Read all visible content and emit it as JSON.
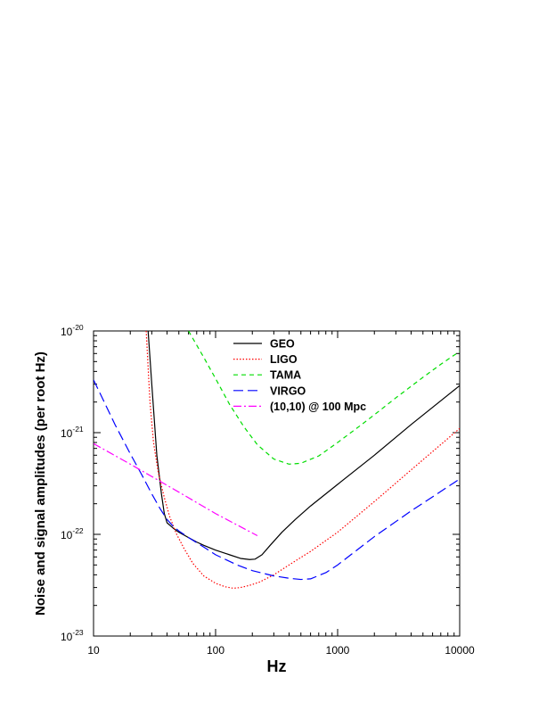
{
  "chart_data": {
    "type": "line",
    "xscale": "log",
    "yscale": "log",
    "xlim": [
      10,
      10000
    ],
    "ylim": [
      1e-23,
      1e-20
    ],
    "xlabel": "Hz",
    "ylabel": "Noise and signal amplitudes (per root Hz)",
    "x_tick_labels": [
      "10",
      "100",
      "1000",
      "10000"
    ],
    "y_tick_labels": [
      {
        "base": "10",
        "exp": "-20"
      },
      {
        "base": "10",
        "exp": "-21"
      },
      {
        "base": "10",
        "exp": "-22"
      },
      {
        "base": "10",
        "exp": "-23"
      }
    ],
    "grid": false,
    "legend_position": "top-center",
    "series": [
      {
        "name": "GEO",
        "color": "#000000",
        "dash": "solid",
        "x": [
          28,
          30,
          33,
          36,
          38,
          40,
          45,
          50,
          60,
          70,
          80,
          100,
          130,
          160,
          190,
          210,
          240,
          280,
          350,
          450,
          600,
          1000,
          2000,
          4000,
          10000
        ],
        "y": [
          1e-20,
          3e-21,
          6e-22,
          2.5e-22,
          1.6e-22,
          1.3e-22,
          1.15e-22,
          1.05e-22,
          9.3e-23,
          8.4e-23,
          7.8e-23,
          7e-23,
          6.3e-23,
          5.8e-23,
          5.65e-23,
          5.7e-23,
          6.3e-23,
          7.8e-23,
          1.05e-22,
          1.4e-22,
          1.9e-22,
          3.1e-22,
          6e-22,
          1.2e-21,
          2.9e-21
        ]
      },
      {
        "name": "LIGO",
        "color": "#ff0000",
        "dash": "dotted",
        "x": [
          27,
          29,
          31,
          34,
          38,
          42,
          48,
          55,
          65,
          80,
          100,
          120,
          140,
          160,
          190,
          230,
          300,
          400,
          600,
          1000,
          2000,
          4000,
          10000
        ],
        "y": [
          1e-20,
          2e-21,
          8e-22,
          4e-22,
          2.3e-22,
          1.5e-22,
          1e-22,
          7.3e-23,
          5.2e-23,
          3.9e-23,
          3.3e-23,
          3.05e-23,
          2.95e-23,
          3e-23,
          3.15e-23,
          3.4e-23,
          4e-23,
          5e-23,
          6.8e-23,
          1.05e-22,
          2.1e-22,
          4.3e-22,
          1.1e-21
        ]
      },
      {
        "name": "TAMA",
        "color": "#00dd00",
        "dash": "dashed",
        "x": [
          60,
          80,
          100,
          130,
          170,
          220,
          300,
          400,
          500,
          700,
          1000,
          1500,
          2000,
          3000,
          5000,
          7000,
          10000
        ],
        "y": [
          1e-20,
          5.5e-21,
          3.4e-21,
          1.9e-21,
          1.15e-21,
          7.6e-22,
          5.5e-22,
          4.9e-22,
          5e-22,
          5.9e-22,
          8e-22,
          1.15e-21,
          1.5e-21,
          2.2e-21,
          3.5e-21,
          4.7e-21,
          6.3e-21
        ]
      },
      {
        "name": "VIRGO",
        "color": "#0000ff",
        "dash": "longdash",
        "x": [
          10,
          12,
          15,
          20,
          25,
          30,
          35,
          40,
          45,
          50,
          60,
          80,
          100,
          150,
          200,
          300,
          400,
          500,
          600,
          800,
          1000,
          2000,
          4000,
          10000
        ],
        "y": [
          3.3e-21,
          2.1e-21,
          1.2e-21,
          6.2e-22,
          3.8e-22,
          2.5e-22,
          1.8e-22,
          1.4e-22,
          1.2e-22,
          1.08e-22,
          9.3e-23,
          7.5e-23,
          6.3e-23,
          5e-23,
          4.4e-23,
          3.9e-23,
          3.7e-23,
          3.6e-23,
          3.65e-23,
          4.2e-23,
          5e-23,
          9.5e-23,
          1.7e-22,
          3.5e-22
        ]
      },
      {
        "name": "(10,10) @ 100 Mpc",
        "color": "#ff00ff",
        "dash": "dashdot",
        "x": [
          10,
          20,
          50,
          100,
          220
        ],
        "y": [
          7.8e-22,
          4.9e-22,
          2.6e-22,
          1.6e-22,
          9.7e-23
        ]
      }
    ]
  }
}
